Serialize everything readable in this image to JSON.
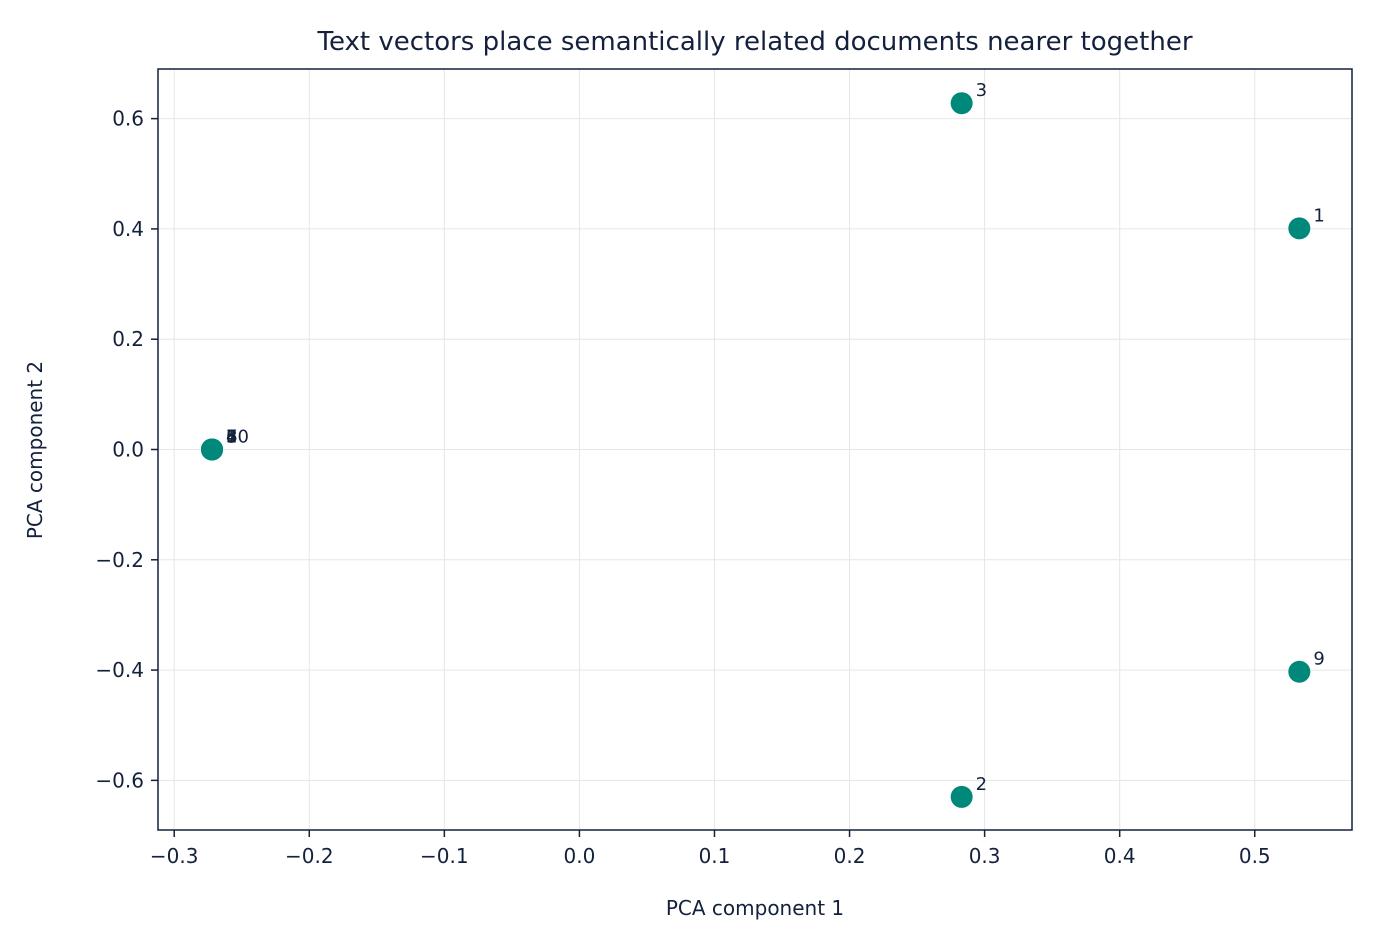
{
  "chart_data": {
    "type": "scatter",
    "title": "Text vectors place semantically related documents nearer together",
    "xlabel": "PCA component 1",
    "ylabel": "PCA component 2",
    "xlim": [
      -0.312,
      0.572
    ],
    "ylim": [
      -0.69,
      0.69
    ],
    "grid": true,
    "marker_color": "#00897b",
    "text_color": "#14213d",
    "x_ticks": [
      -0.3,
      -0.2,
      -0.1,
      0.0,
      0.1,
      0.2,
      0.3,
      0.4,
      0.5
    ],
    "x_tick_labels": [
      "−0.3",
      "−0.2",
      "−0.1",
      "0.0",
      "0.1",
      "0.2",
      "0.3",
      "0.4",
      "0.5"
    ],
    "y_ticks": [
      0.6,
      0.4,
      0.2,
      0.0,
      -0.2,
      -0.4,
      -0.6
    ],
    "y_tick_labels": [
      "0.6",
      "0.4",
      "0.2",
      "0.0",
      "−0.2",
      "−0.4",
      "−0.6"
    ],
    "points": [
      {
        "label": "1",
        "x": 0.533,
        "y": 0.401
      },
      {
        "label": "2",
        "x": 0.283,
        "y": -0.63
      },
      {
        "label": "3",
        "x": 0.283,
        "y": 0.628
      },
      {
        "label": "4",
        "x": -0.272,
        "y": 0.0
      },
      {
        "label": "5",
        "x": -0.272,
        "y": 0.0
      },
      {
        "label": "6",
        "x": -0.272,
        "y": 0.0
      },
      {
        "label": "7",
        "x": -0.272,
        "y": 0.0
      },
      {
        "label": "8",
        "x": -0.272,
        "y": 0.0
      },
      {
        "label": "9",
        "x": 0.533,
        "y": -0.403
      },
      {
        "label": "10",
        "x": -0.272,
        "y": 0.0
      }
    ]
  }
}
